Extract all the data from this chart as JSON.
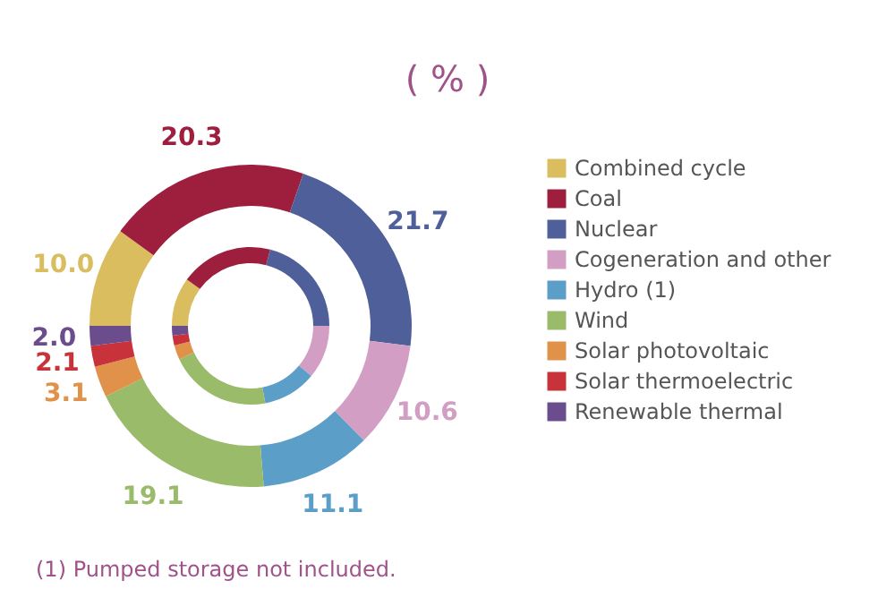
{
  "chart_data": {
    "type": "donut",
    "title": "( % )",
    "categories": [
      "Combined cycle",
      "Coal",
      "Nuclear",
      "Cogeneration and other",
      "Hydro (1)",
      "Wind",
      "Solar photovoltaic",
      "Solar thermoelectric",
      "Renewable thermal"
    ],
    "colors": [
      "#d9bd5e",
      "#9e1f3d",
      "#4e5f9a",
      "#d39ec4",
      "#5b9fc8",
      "#99bb6a",
      "#e0914a",
      "#c8323a",
      "#6b4c8c"
    ],
    "series": [
      {
        "values": [
          10.0,
          20.3,
          21.7,
          10.6,
          11.1,
          19.1,
          3.1,
          2.1,
          2.0
        ],
        "value_labels": [
          "10.0",
          "20.3",
          "21.7",
          "10.6",
          "11.1",
          "19.1",
          "3.1",
          "2.1",
          "2.0"
        ]
      },
      {
        "values": [
          10,
          19,
          21,
          11,
          11,
          21,
          3,
          2,
          2
        ]
      }
    ],
    "legend": "right",
    "annotations": [
      "(1) Pumped storage not included."
    ]
  }
}
